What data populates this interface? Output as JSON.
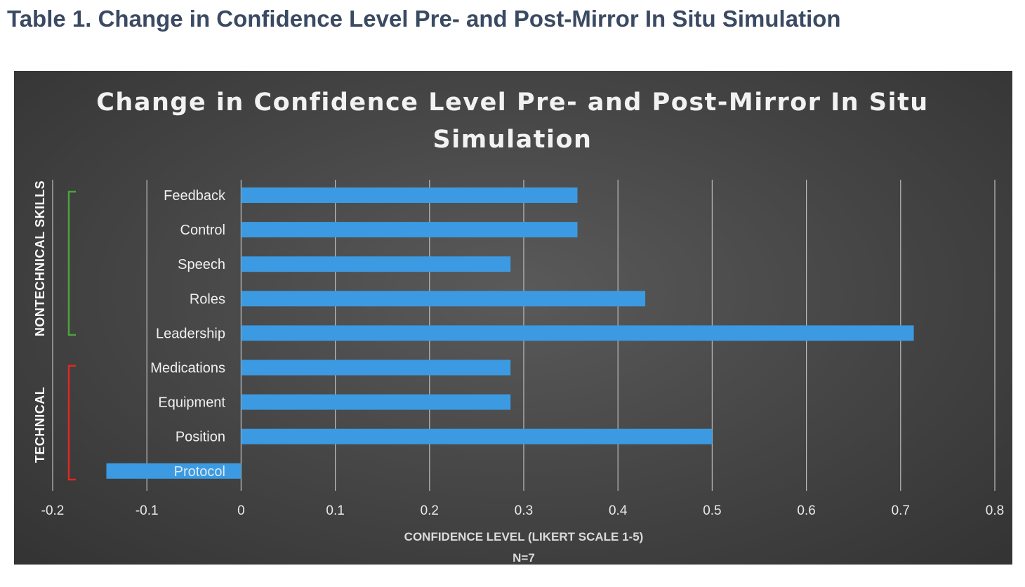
{
  "caption": "Table 1. Change in Confidence Level Pre- and Post-Mirror In Situ Simulation",
  "chart_data": {
    "type": "bar",
    "orientation": "horizontal",
    "title_line1": "Change in Confidence Level Pre- and Post-Mirror In Situ",
    "title_line2": "Simulation",
    "categories": [
      "Feedback",
      "Control",
      "Speech",
      "Roles",
      "Leadership",
      "Medications",
      "Equipment",
      "Position",
      "Protocol"
    ],
    "values": [
      0.357,
      0.357,
      0.286,
      0.429,
      0.714,
      0.286,
      0.286,
      0.5,
      -0.143
    ],
    "groups": [
      {
        "label": "NONTECHNICAL SKILLS",
        "color": "#4aa33a"
      },
      {
        "label": "TECHNICAL",
        "color": "#e0281e"
      }
    ],
    "xlim": [
      -0.2,
      0.8
    ],
    "xticks": [
      "-0.2",
      "-0.1",
      "0",
      "0.1",
      "0.2",
      "0.3",
      "0.4",
      "0.5",
      "0.6",
      "0.7",
      "0.8"
    ],
    "xlabel": "CONFIDENCE LEVEL (LIKERT SCALE 1-5)",
    "xlabel_sub": "N=7",
    "grid": true,
    "bar_color": "#3b9ae1",
    "gridline_color": "#bfbfbf"
  }
}
